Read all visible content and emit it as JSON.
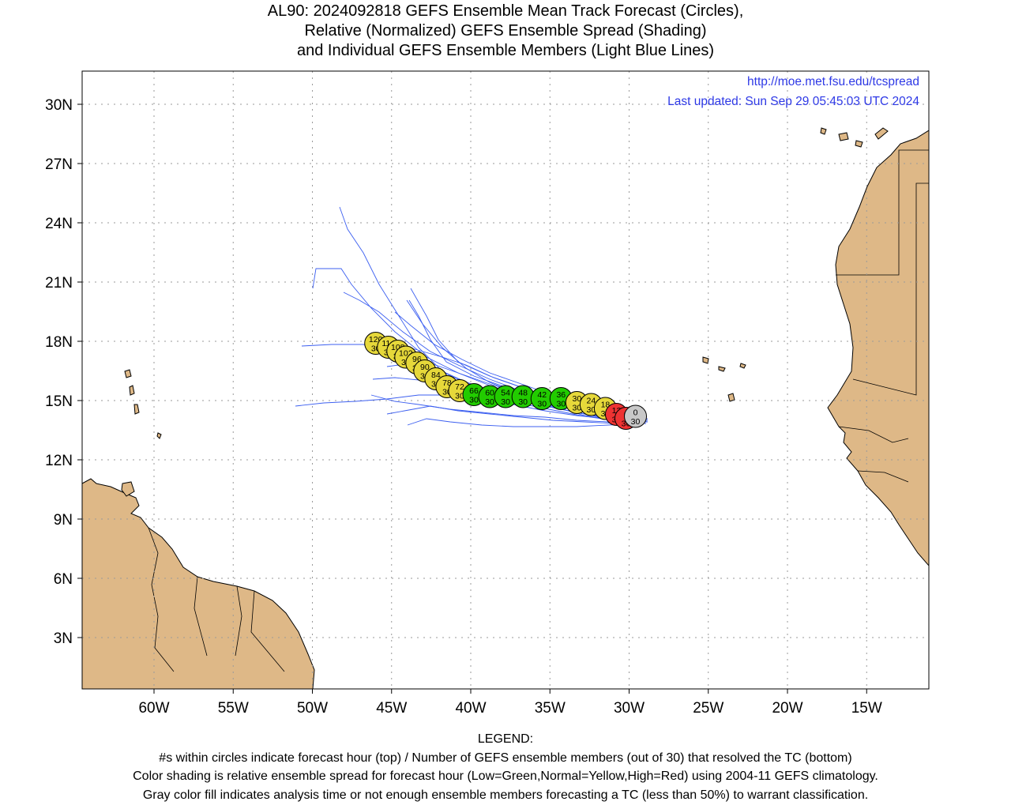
{
  "title": {
    "line1": "AL90: 2024092818 GEFS Ensemble Mean Track Forecast (Circles),",
    "line2": "Relative (Normalized) GEFS Ensemble Spread (Shading)",
    "line3": "and Individual GEFS Ensemble Members (Light Blue Lines)"
  },
  "credit": {
    "url": "http://moe.met.fsu.edu/tcspread",
    "updated": "Last updated: Sun Sep 29 05:45:03 UTC 2024"
  },
  "axes": {
    "lat_ticks": [
      "30N",
      "27N",
      "24N",
      "21N",
      "18N",
      "15N",
      "12N",
      "9N",
      "6N",
      "3N"
    ],
    "lon_ticks": [
      "60W",
      "55W",
      "50W",
      "45W",
      "40W",
      "35W",
      "30W",
      "25W",
      "20W",
      "15W"
    ]
  },
  "colors": {
    "low_spread": "#22cc00",
    "normal_spread": "#e6d83a",
    "high_spread": "#ee3333",
    "analysis": "#c8c8c8",
    "land": "#deb887",
    "members": "#3c5ff0",
    "credit_text": "#2e39e6"
  },
  "track": [
    {
      "hour": "0",
      "members": "30",
      "lon": -29.6,
      "lat": 14.2,
      "spread": "analysis"
    },
    {
      "hour": "6",
      "members": "30",
      "lon": -30.2,
      "lat": 14.1,
      "spread": "high"
    },
    {
      "hour": "12",
      "members": "30",
      "lon": -30.8,
      "lat": 14.3,
      "spread": "high"
    },
    {
      "hour": "18",
      "members": "30",
      "lon": -31.5,
      "lat": 14.6,
      "spread": "normal"
    },
    {
      "hour": "24",
      "members": "30",
      "lon": -32.4,
      "lat": 14.8,
      "spread": "normal"
    },
    {
      "hour": "30",
      "members": "30",
      "lon": -33.3,
      "lat": 14.9,
      "spread": "normal"
    },
    {
      "hour": "36",
      "members": "30",
      "lon": -34.3,
      "lat": 15.1,
      "spread": "low"
    },
    {
      "hour": "42",
      "members": "30",
      "lon": -35.5,
      "lat": 15.1,
      "spread": "low"
    },
    {
      "hour": "48",
      "members": "30",
      "lon": -36.7,
      "lat": 15.2,
      "spread": "low"
    },
    {
      "hour": "54",
      "members": "30",
      "lon": -37.8,
      "lat": 15.2,
      "spread": "low"
    },
    {
      "hour": "60",
      "members": "30",
      "lon": -38.8,
      "lat": 15.2,
      "spread": "low"
    },
    {
      "hour": "66",
      "members": "30",
      "lon": -39.8,
      "lat": 15.3,
      "spread": "low"
    },
    {
      "hour": "72",
      "members": "30",
      "lon": -40.7,
      "lat": 15.5,
      "spread": "normal"
    },
    {
      "hour": "78",
      "members": "30",
      "lon": -41.5,
      "lat": 15.7,
      "spread": "normal"
    },
    {
      "hour": "84",
      "members": "30",
      "lon": -42.2,
      "lat": 16.1,
      "spread": "normal"
    },
    {
      "hour": "90",
      "members": "30",
      "lon": -42.9,
      "lat": 16.5,
      "spread": "normal"
    },
    {
      "hour": "96",
      "members": "30",
      "lon": -43.4,
      "lat": 16.9,
      "spread": "normal"
    },
    {
      "hour": "102",
      "members": "30",
      "lon": -44.1,
      "lat": 17.2,
      "spread": "normal"
    },
    {
      "hour": "108",
      "members": "30",
      "lon": -44.6,
      "lat": 17.5,
      "spread": "normal"
    },
    {
      "hour": "114",
      "members": "30",
      "lon": -45.2,
      "lat": 17.7,
      "spread": "normal"
    },
    {
      "hour": "120",
      "members": "30",
      "lon": -46.0,
      "lat": 17.9,
      "spread": "normal"
    }
  ],
  "legend": {
    "heading": "LEGEND:",
    "line1": "#s within circles indicate forecast hour (top) / Number of GEFS ensemble members (out of 30) that resolved the TC (bottom)",
    "line2": "Color shading is relative ensemble spread for forecast hour (Low=Green,Normal=Yellow,High=Red) using 2004-11 GEFS climatology.",
    "line3": "Gray color fill indicates analysis time or not enough ensemble members forecasting a TC (less than 50%) to warrant classification."
  }
}
